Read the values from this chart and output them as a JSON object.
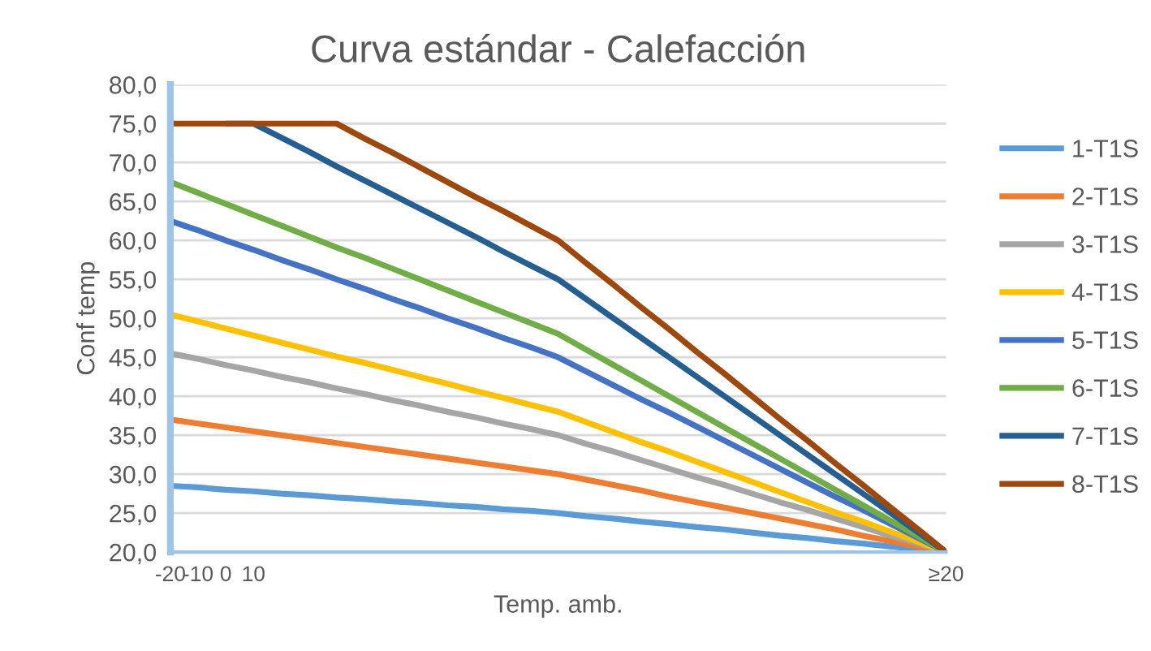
{
  "chart_data": {
    "type": "line",
    "title": "Curva estándar - Calefacción",
    "xlabel": "Temp. amb.",
    "ylabel": "Conf temp",
    "categories": [
      "-20",
      "-10",
      "0",
      "10",
      null,
      null,
      null,
      null,
      null,
      null,
      null,
      null,
      null,
      null,
      null,
      null,
      null,
      null,
      null,
      null,
      null,
      null,
      null,
      null,
      null,
      null,
      null,
      null,
      "≥20"
    ],
    "ylim": [
      20,
      80
    ],
    "yticks": [
      {
        "value": 20,
        "label": "20,0"
      },
      {
        "value": 25,
        "label": "25,0"
      },
      {
        "value": 30,
        "label": "30,0"
      },
      {
        "value": 35,
        "label": "35,0"
      },
      {
        "value": 40,
        "label": "40,0"
      },
      {
        "value": 45,
        "label": "45,0"
      },
      {
        "value": 50,
        "label": "50,0"
      },
      {
        "value": 55,
        "label": "55,0"
      },
      {
        "value": 60,
        "label": "60,0"
      },
      {
        "value": 65,
        "label": "65,0"
      },
      {
        "value": 70,
        "label": "70,0"
      },
      {
        "value": 75,
        "label": "75,0"
      },
      {
        "value": 80,
        "label": "80,0"
      }
    ],
    "grid": "y",
    "legend": "right",
    "marker": "none",
    "line_style": "solid",
    "series": [
      {
        "name": "1-T1S",
        "color": "#5b9bd5",
        "values": [
          28.5,
          28.3,
          28,
          27.8,
          27.5,
          27.3,
          27,
          26.8,
          26.5,
          26.3,
          26,
          25.8,
          25.5,
          25.3,
          25,
          24.6,
          24.3,
          23.9,
          23.6,
          23.2,
          22.9,
          22.5,
          22.1,
          21.8,
          21.4,
          21.1,
          20.7,
          20.4,
          20
        ]
      },
      {
        "name": "2-T1S",
        "color": "#ed7d31",
        "values": [
          37,
          36.5,
          36,
          35.5,
          35,
          34.5,
          34,
          33.5,
          33,
          32.5,
          32,
          31.5,
          31,
          30.5,
          30,
          29.3,
          28.6,
          27.9,
          27.1,
          26.4,
          25.7,
          25,
          24.3,
          23.6,
          22.9,
          22.1,
          21.4,
          20.7,
          20
        ]
      },
      {
        "name": "3-T1S",
        "color": "#a5a5a5",
        "values": [
          45.5,
          44.8,
          44,
          43.3,
          42.5,
          41.8,
          41,
          40.3,
          39.5,
          38.8,
          38,
          37.3,
          36.5,
          35.8,
          35,
          33.9,
          32.9,
          31.8,
          30.7,
          29.6,
          28.6,
          27.5,
          26.4,
          25.4,
          24.3,
          23.2,
          22.1,
          21.1,
          20
        ]
      },
      {
        "name": "4-T1S",
        "color": "#ffc000",
        "values": [
          50.5,
          49.6,
          48.7,
          47.8,
          46.9,
          46.0,
          45.1,
          44.3,
          43.4,
          42.5,
          41.6,
          40.7,
          39.8,
          38.9,
          38,
          36.7,
          35.4,
          34.1,
          32.9,
          31.6,
          30.3,
          29,
          27.7,
          26.4,
          25.1,
          23.9,
          22.6,
          21.3,
          20
        ]
      },
      {
        "name": "5-T1S",
        "color": "#4472c4",
        "values": [
          62.5,
          61.3,
          60,
          58.8,
          57.5,
          56.3,
          55,
          53.8,
          52.5,
          51.3,
          50,
          48.8,
          47.5,
          46.3,
          45,
          43.2,
          41.4,
          39.6,
          37.9,
          36.1,
          34.3,
          32.5,
          30.7,
          28.9,
          27.1,
          25.4,
          23.6,
          21.8,
          20
        ]
      },
      {
        "name": "6-T1S",
        "color": "#70ad47",
        "values": [
          67.5,
          66.1,
          64.7,
          63.3,
          61.9,
          60.5,
          59.1,
          57.8,
          56.4,
          55,
          53.6,
          52.2,
          50.8,
          49.4,
          48,
          46,
          44,
          42,
          40,
          38,
          36,
          34,
          32,
          30,
          28,
          26,
          24,
          22,
          20
        ]
      },
      {
        "name": "7-T1S",
        "color": "#255e91",
        "values": [
          null,
          null,
          75,
          75,
          73.2,
          71.4,
          69.5,
          67.7,
          65.9,
          64.1,
          62.3,
          60.5,
          58.6,
          56.8,
          55,
          52.5,
          50,
          47.5,
          45,
          42.5,
          40,
          37.5,
          35,
          32.5,
          30,
          27.5,
          25,
          22.5,
          20
        ]
      },
      {
        "name": "8-T1S",
        "color": "#9e480e",
        "values": [
          75,
          75,
          75,
          75,
          75,
          75,
          75,
          73.1,
          71.3,
          69.4,
          67.5,
          65.6,
          63.8,
          61.9,
          60,
          57.1,
          54.3,
          51.4,
          48.6,
          45.7,
          42.9,
          40,
          37.1,
          34.3,
          31.4,
          28.6,
          25.7,
          22.9,
          20
        ]
      }
    ]
  }
}
